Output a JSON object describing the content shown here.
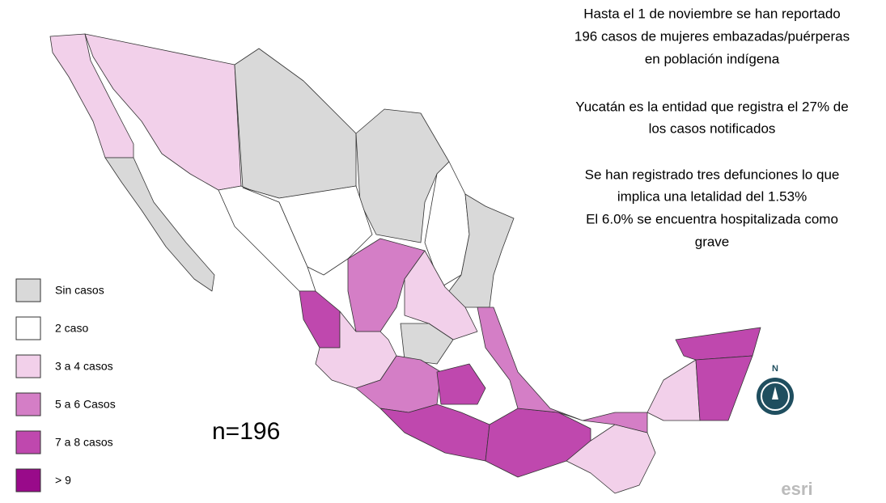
{
  "annotations": [
    "Hasta  el  1 de noviembre se han reportado",
    "196 casos de  mujeres embazadas/puérperas",
    "en población indígena",
    "Yucatán es la entidad que registra el 27% de",
    "los casos notificados",
    "Se han registrado tres defunciones lo que",
    "implica una letalidad del 1.53%",
    "El  6.0% se encuentra  hospitalizada como",
    "grave"
  ],
  "legend": [
    {
      "label": "Sin casos",
      "color": "#d9d9d9"
    },
    {
      "label": "2 caso",
      "color": "#ffffff"
    },
    {
      "label": "3 a 4 casos",
      "color": "#f2d0ea"
    },
    {
      "label": "5 a 6 Casos",
      "color": "#d47ec6"
    },
    {
      "label": "7  a 8 casos",
      "color": "#bf48ae"
    },
    {
      "label": " > 9",
      "color": "#990a8a"
    }
  ],
  "n_label": "n=196",
  "compass": "N",
  "logo": "esri"
}
